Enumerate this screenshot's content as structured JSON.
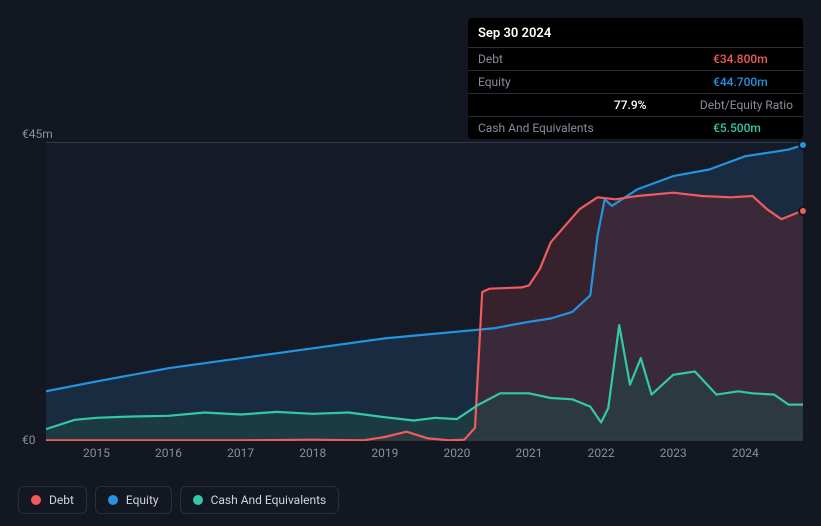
{
  "tooltip": {
    "date": "Sep 30 2024",
    "rows": [
      {
        "label": "Debt",
        "value": "€34.800m",
        "color": "#f15b5b"
      },
      {
        "label": "Equity",
        "value": "€44.700m",
        "color": "#2394df"
      },
      {
        "label": "",
        "value": "77.9%",
        "color": "#ffffff",
        "extra": "Debt/Equity Ratio"
      },
      {
        "label": "Cash And Equivalents",
        "value": "€5.500m",
        "color": "#32c8a8"
      }
    ]
  },
  "chart": {
    "type": "area",
    "background_color": "#151a27",
    "grid_color": "#33394a",
    "ylim": [
      0,
      45
    ],
    "y_ticks": [
      {
        "v": 0,
        "label": "€0"
      },
      {
        "v": 45,
        "label": "€45m"
      }
    ],
    "x_range": [
      2014.3,
      2024.8
    ],
    "x_ticks": [
      2015,
      2016,
      2017,
      2018,
      2019,
      2020,
      2021,
      2022,
      2023,
      2024
    ],
    "series": [
      {
        "name": "Equity",
        "color": "#2394df",
        "fill": "#1b3b55",
        "fill_opacity": 0.55,
        "line_width": 2.2,
        "data": [
          [
            2014.3,
            7.5
          ],
          [
            2015,
            9
          ],
          [
            2016,
            11
          ],
          [
            2017,
            12.5
          ],
          [
            2018,
            14
          ],
          [
            2019,
            15.5
          ],
          [
            2019.5,
            16
          ],
          [
            2020,
            16.5
          ],
          [
            2020.5,
            17
          ],
          [
            2021,
            18
          ],
          [
            2021.3,
            18.5
          ],
          [
            2021.6,
            19.5
          ],
          [
            2021.85,
            22
          ],
          [
            2021.95,
            31
          ],
          [
            2022.05,
            36.5
          ],
          [
            2022.15,
            35.5
          ],
          [
            2022.5,
            38
          ],
          [
            2023,
            40
          ],
          [
            2023.5,
            41
          ],
          [
            2024,
            43
          ],
          [
            2024.3,
            43.5
          ],
          [
            2024.6,
            44
          ],
          [
            2024.8,
            44.7
          ]
        ]
      },
      {
        "name": "Debt",
        "color": "#f15b5b",
        "fill": "#5a2732",
        "fill_opacity": 0.5,
        "line_width": 2.2,
        "data": [
          [
            2014.3,
            0.1
          ],
          [
            2015,
            0.1
          ],
          [
            2016,
            0.1
          ],
          [
            2017,
            0.1
          ],
          [
            2018,
            0.2
          ],
          [
            2018.7,
            0.1
          ],
          [
            2019,
            0.6
          ],
          [
            2019.3,
            1.4
          ],
          [
            2019.6,
            0.4
          ],
          [
            2019.9,
            0.1
          ],
          [
            2020.1,
            0.2
          ],
          [
            2020.25,
            2
          ],
          [
            2020.35,
            22.5
          ],
          [
            2020.45,
            23
          ],
          [
            2020.9,
            23.2
          ],
          [
            2021.0,
            23.5
          ],
          [
            2021.15,
            26
          ],
          [
            2021.3,
            30
          ],
          [
            2021.7,
            35
          ],
          [
            2021.95,
            36.8
          ],
          [
            2022.2,
            36.5
          ],
          [
            2022.5,
            37
          ],
          [
            2023,
            37.5
          ],
          [
            2023.4,
            37
          ],
          [
            2023.8,
            36.8
          ],
          [
            2024.1,
            37
          ],
          [
            2024.3,
            35
          ],
          [
            2024.5,
            33.5
          ],
          [
            2024.8,
            34.8
          ]
        ]
      },
      {
        "name": "Cash And Equivalents",
        "color": "#32c8a8",
        "fill": "#1f4a44",
        "fill_opacity": 0.5,
        "line_width": 2.2,
        "data": [
          [
            2014.3,
            1.8
          ],
          [
            2014.7,
            3.2
          ],
          [
            2015,
            3.5
          ],
          [
            2015.5,
            3.7
          ],
          [
            2016,
            3.8
          ],
          [
            2016.5,
            4.3
          ],
          [
            2017,
            4
          ],
          [
            2017.5,
            4.4
          ],
          [
            2018,
            4.1
          ],
          [
            2018.5,
            4.3
          ],
          [
            2019,
            3.6
          ],
          [
            2019.4,
            3.1
          ],
          [
            2019.7,
            3.5
          ],
          [
            2020,
            3.3
          ],
          [
            2020.3,
            5.5
          ],
          [
            2020.6,
            7.2
          ],
          [
            2021,
            7.2
          ],
          [
            2021.3,
            6.5
          ],
          [
            2021.6,
            6.3
          ],
          [
            2021.85,
            5.2
          ],
          [
            2022.0,
            2.8
          ],
          [
            2022.1,
            5
          ],
          [
            2022.25,
            17.5
          ],
          [
            2022.4,
            8.5
          ],
          [
            2022.55,
            12.5
          ],
          [
            2022.7,
            7
          ],
          [
            2023,
            10
          ],
          [
            2023.3,
            10.5
          ],
          [
            2023.6,
            7
          ],
          [
            2023.9,
            7.5
          ],
          [
            2024.1,
            7.2
          ],
          [
            2024.4,
            7
          ],
          [
            2024.6,
            5.5
          ],
          [
            2024.8,
            5.5
          ]
        ]
      }
    ],
    "markers": [
      {
        "series": "Equity",
        "x": 2024.8,
        "y": 44.7,
        "color": "#2394df"
      },
      {
        "series": "Debt",
        "x": 2024.8,
        "y": 34.8,
        "color": "#f15b5b"
      }
    ]
  },
  "legend": {
    "items": [
      {
        "label": "Debt",
        "color": "#f15b5b"
      },
      {
        "label": "Equity",
        "color": "#2394df"
      },
      {
        "label": "Cash And Equivalents",
        "color": "#32c8a8"
      }
    ]
  }
}
